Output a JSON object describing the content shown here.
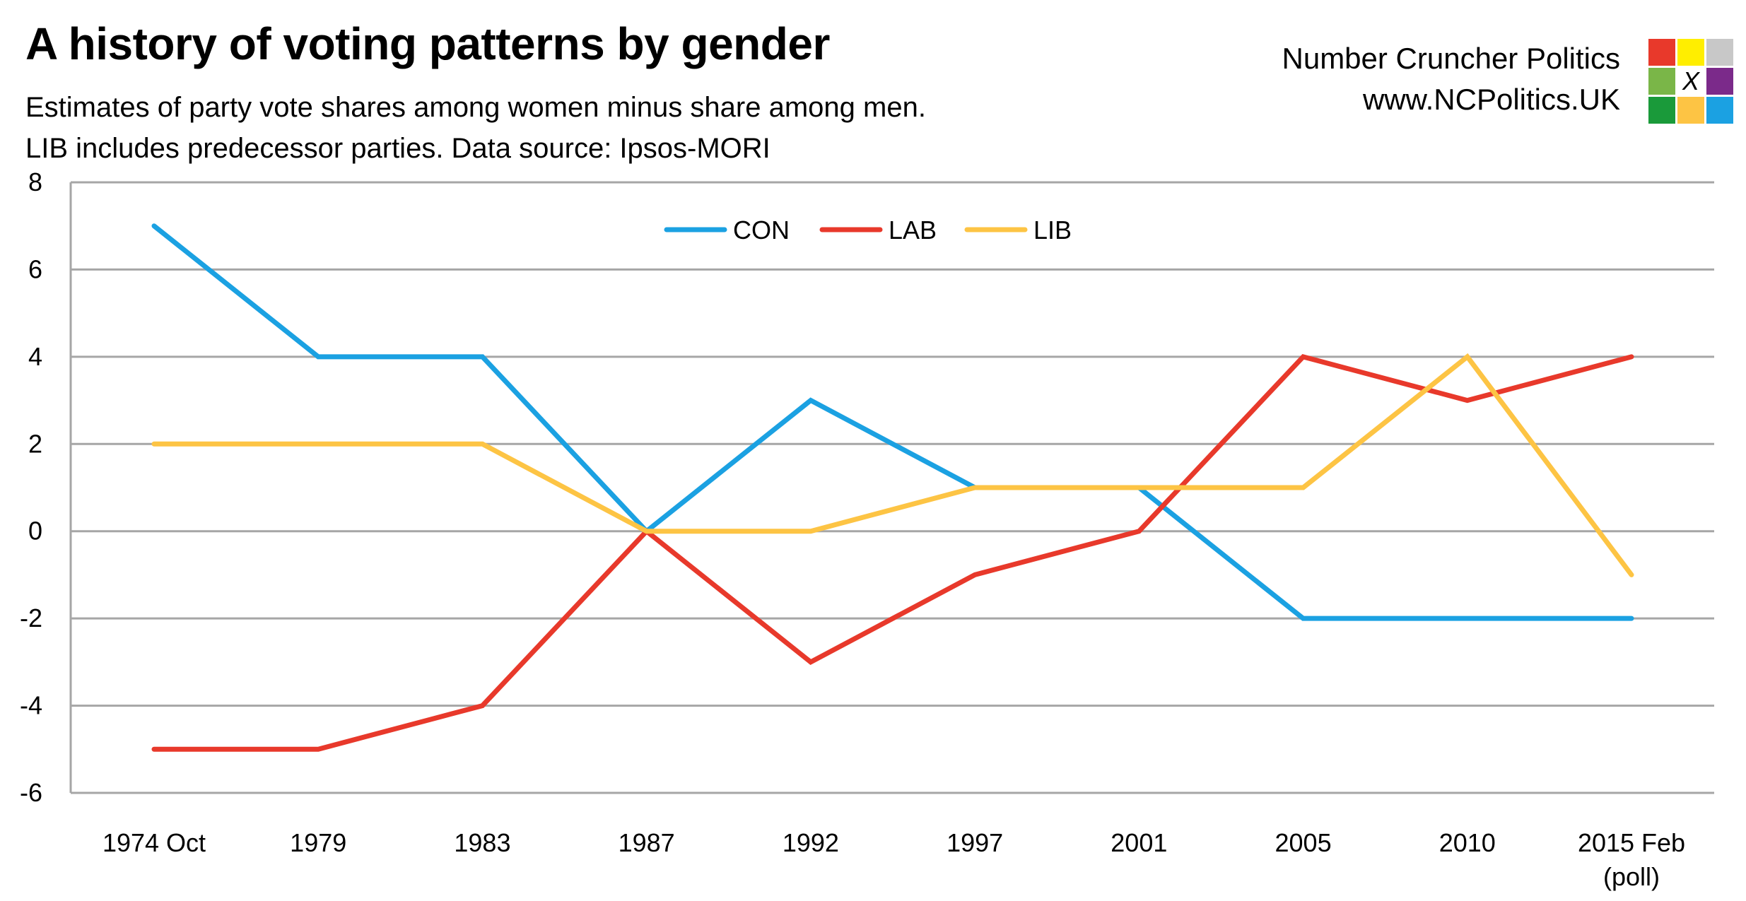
{
  "header": {
    "title": "A history of voting patterns by gender",
    "subtitle_line1": "Estimates of party vote shares among women minus share among men.",
    "subtitle_line2": "LIB includes predecessor parties. Data source: Ipsos-MORI",
    "brand_name": "Number Cruncher Politics",
    "brand_url": "www.NCPolitics.UK",
    "logo_mark": "X",
    "logo_colors": [
      "#e8392b",
      "#ffee00",
      "#c8c8c8",
      "#7ab648",
      "#ffffff",
      "#7b2a8a",
      "#1a9a3a",
      "#fdc444",
      "#1ba1e2"
    ]
  },
  "chart_data": {
    "type": "line",
    "categories": [
      "1974 Oct",
      "1979",
      "1983",
      "1987",
      "1992",
      "1997",
      "2001",
      "2005",
      "2010",
      "2015 Feb\n(poll)"
    ],
    "series": [
      {
        "name": "CON",
        "color": "#1ba1e2",
        "values": [
          7,
          4,
          4,
          0,
          3,
          1,
          1,
          -2,
          -2,
          -2
        ]
      },
      {
        "name": "LAB",
        "color": "#e8392b",
        "values": [
          -5,
          -5,
          -4,
          0,
          -3,
          -1,
          0,
          4,
          3,
          4
        ]
      },
      {
        "name": "LIB",
        "color": "#fdc444",
        "values": [
          2,
          2,
          2,
          0,
          0,
          1,
          1,
          1,
          4,
          -1
        ]
      }
    ],
    "ylim": [
      -6,
      8
    ],
    "yticks": [
      -6,
      -4,
      -2,
      0,
      2,
      4,
      6,
      8
    ],
    "grid": true,
    "legend": "top-center"
  }
}
